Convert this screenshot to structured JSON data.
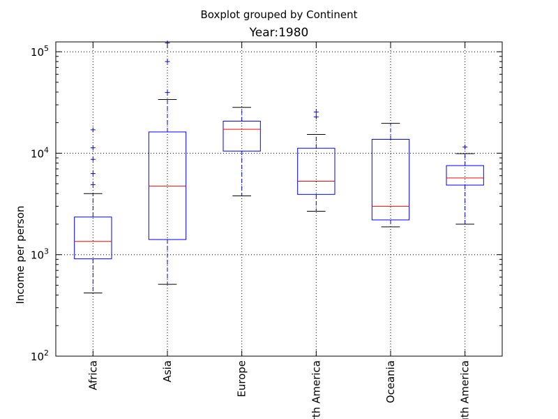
{
  "chart_data": {
    "type": "boxplot",
    "suptitle": "Boxplot grouped by Continent",
    "title": "Year:1980",
    "xlabel": "",
    "ylabel": "Income per person",
    "yscale": "log",
    "ylim": [
      100,
      125000
    ],
    "yticks": [
      {
        "value": 100,
        "base": "10",
        "exp": "2"
      },
      {
        "value": 1000,
        "base": "10",
        "exp": "3"
      },
      {
        "value": 10000,
        "base": "10",
        "exp": "4"
      },
      {
        "value": 100000,
        "base": "10",
        "exp": "5"
      }
    ],
    "grid": true,
    "categories": [
      "Africa",
      "Asia",
      "Europe",
      "North America",
      "Oceania",
      "South America"
    ],
    "boxes": [
      {
        "whisker_low": 420,
        "q1": 910,
        "median": 1350,
        "q3": 2350,
        "whisker_high": 4000,
        "outliers": [
          4900,
          6300,
          8700,
          11300,
          17000
        ]
      },
      {
        "whisker_low": 510,
        "q1": 1410,
        "median": 4750,
        "q3": 16200,
        "whisker_high": 33800,
        "outliers": [
          39700,
          80000,
          122000
        ]
      },
      {
        "whisker_low": 3800,
        "q1": 10500,
        "median": 17200,
        "q3": 20700,
        "whisker_high": 28300,
        "outliers": []
      },
      {
        "whisker_low": 2680,
        "q1": 3930,
        "median": 5300,
        "q3": 11200,
        "whisker_high": 15300,
        "outliers": [
          22800,
          25500
        ]
      },
      {
        "whisker_low": 1880,
        "q1": 2200,
        "median": 3000,
        "q3": 13700,
        "whisker_high": 19700,
        "outliers": []
      },
      {
        "whisker_low": 2000,
        "q1": 4850,
        "median": 5700,
        "q3": 7550,
        "whisker_high": 9900,
        "outliers": [
          11500
        ]
      }
    ],
    "colors": {
      "box": "#0000ff",
      "median": "#ff0000",
      "cap": "#000000",
      "outlier": "#0000ff",
      "grid": "#000000"
    }
  }
}
